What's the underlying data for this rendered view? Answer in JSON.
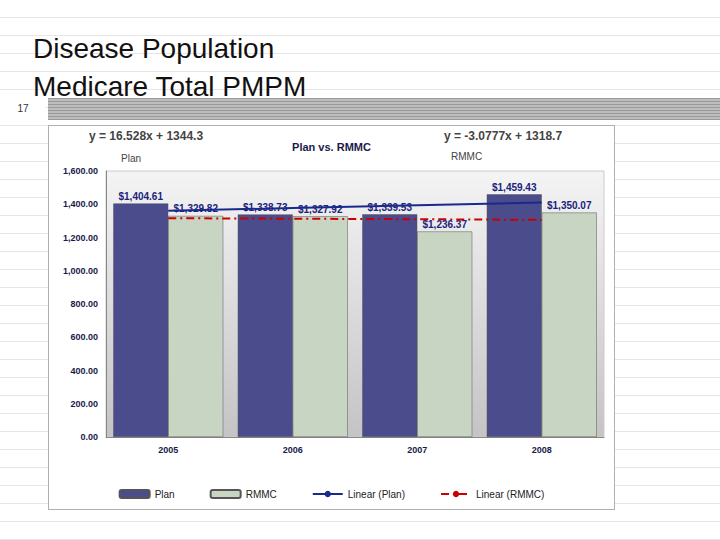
{
  "slide": {
    "title": [
      "Disease Population",
      "Medicare Total PMPM"
    ],
    "number": "17"
  },
  "chart_data": {
    "type": "bar",
    "title": "Plan vs. RMMC",
    "categories": [
      "2005",
      "2006",
      "2007",
      "2008"
    ],
    "series": [
      {
        "name": "Plan",
        "type": "bar",
        "color": "#4b4c8c",
        "values": [
          1404.61,
          1338.73,
          1339.53,
          1459.43
        ],
        "value_labels": [
          "$1,404.61",
          "$1,338.73",
          "$1,339.53",
          "$1,459.43"
        ]
      },
      {
        "name": "RMMC",
        "type": "bar",
        "color": "#c9d5c3",
        "values": [
          1329.82,
          1327.92,
          1236.37,
          1350.07
        ],
        "value_labels": [
          "$1,329.82",
          "$1,327.92",
          "$1,236.37",
          "$1,350.07"
        ]
      },
      {
        "name": "Linear (Plan)",
        "type": "line",
        "color": "#1a2a8c",
        "line_style": "solid",
        "values": [
          1361,
          1377,
          1394,
          1410
        ]
      },
      {
        "name": "Linear (RMMC)",
        "type": "line",
        "color": "#cc0000",
        "line_style": "dashed",
        "values": [
          1316,
          1313,
          1310,
          1306
        ]
      }
    ],
    "annotations": [
      {
        "text": "y = 16.528x + 1344.3"
      },
      {
        "text": "Plan"
      },
      {
        "text": "y = -3.0777x + 1318.7"
      },
      {
        "text": "RMMC"
      }
    ],
    "ylim": [
      0,
      1600
    ],
    "yticks": [
      {
        "value": 0,
        "label": "0.00"
      },
      {
        "value": 200,
        "label": "200.00"
      },
      {
        "value": 400,
        "label": "400.00"
      },
      {
        "value": 600,
        "label": "600.00"
      },
      {
        "value": 800,
        "label": "800.00"
      },
      {
        "value": 1000,
        "label": "1,000.00"
      },
      {
        "value": 1200,
        "label": "1,200.00"
      },
      {
        "value": 1400,
        "label": "1,400.00"
      },
      {
        "value": 1600,
        "label": "1,600.00"
      }
    ],
    "grid": false,
    "legend": "bottom",
    "data_labels": true
  }
}
